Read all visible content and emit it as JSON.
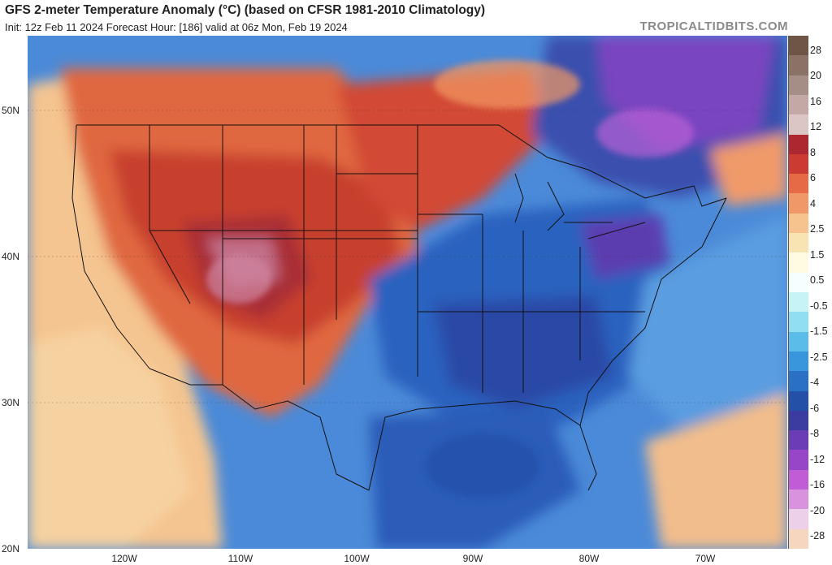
{
  "header": {
    "title": "GFS 2-meter Temperature Anomaly (°C) (based on CFSR 1981-2010 Climatology)",
    "subtitle": "Init: 12z Feb 11 2024   Forecast Hour: [186]   valid at 06z Mon, Feb 19 2024",
    "brand": "TROPICALTIDBITS.COM"
  },
  "map": {
    "latitude_labels": [
      "50N",
      "40N",
      "30N",
      "20N"
    ],
    "longitude_labels": [
      "120W",
      "110W",
      "100W",
      "90W",
      "80W",
      "70W"
    ]
  },
  "legend": {
    "colors": [
      "#6e5546",
      "#8a7266",
      "#a58e86",
      "#c2a9a6",
      "#dcc6c5",
      "#ad2730",
      "#cc3b32",
      "#e56a45",
      "#f19868",
      "#f6c38f",
      "#f8e3b3",
      "#fffbe3",
      "#f6ffff",
      "#c6f3f5",
      "#90def0",
      "#5cbce9",
      "#3a96dc",
      "#2a70c4",
      "#2450a8",
      "#3c3ca0",
      "#6a3cb5",
      "#9646c6",
      "#c05cd6",
      "#d892de",
      "#ecd0ea",
      "#f6d6bf"
    ],
    "labels": [
      "28",
      "20",
      "16",
      "12",
      "8",
      "6",
      "4",
      "2.5",
      "1.5",
      "0.5",
      "-0.5",
      "-1.5",
      "-2.5",
      "-4",
      "-6",
      "-8",
      "-12",
      "-16",
      "-20",
      "-28"
    ]
  }
}
